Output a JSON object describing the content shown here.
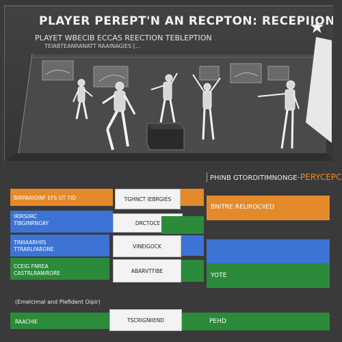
{
  "banner": {
    "title": "PLAYER PEREPT'N AN RECPTON: RECEPIION",
    "subtitle": "PLAYET WBECIB ECCAS REECTION  TEBLEPTION",
    "subtitle2": "TEIABTEANRANATT RAAINAGIES [..."
  },
  "mid_label": {
    "prefix": "PHINB GTORDITIMNONGE",
    "accent": "-PERYCEPCION"
  },
  "rows": {
    "row1": {
      "left": "BIRPARIOINF EFS OT TID",
      "card": "TGHNCT IEBRGIES",
      "right": "BNITRE RELIROCIIED"
    },
    "row2": {
      "left_line1": "IRIRSIIRC",
      "left_line2": "TIBGINRNOAY",
      "card": "DRCTOCE"
    },
    "row3": {
      "left_line1": "TINIIAARHIIS",
      "left_line2": "TTRARLFARONE",
      "card": "VINEIGOCK"
    },
    "row4": {
      "left_line1": "CCEIG FNREA",
      "left_line2": "CASTRLRANIRORE",
      "card": "ABARVTTIBE",
      "right": "YOTE"
    },
    "legend": "(Emelcimal and Plefident Oipir)",
    "row5": {
      "left": "RAACHIE",
      "card": "TSCRIGNIIEND",
      "right": "PEHD"
    }
  },
  "colors": {
    "orange": "#e58a2a",
    "blue": "#3d73d4",
    "green": "#2b8b3b",
    "background": "#3a3a3a"
  },
  "icons": {
    "logo": "star-logo-icon"
  }
}
